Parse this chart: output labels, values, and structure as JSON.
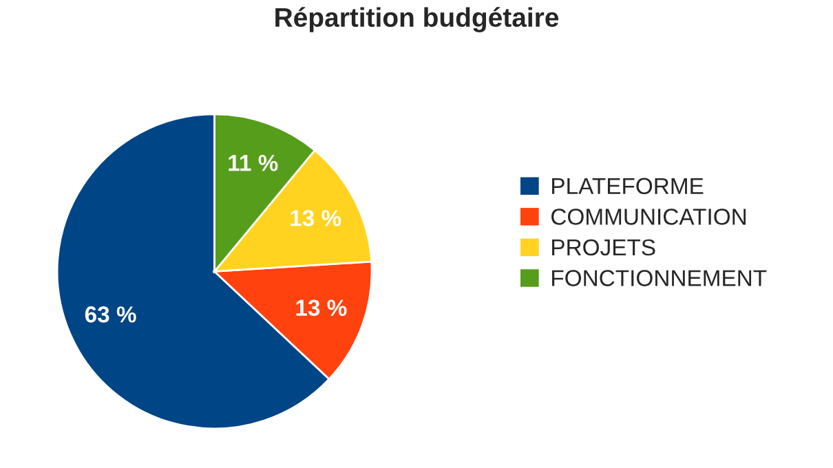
{
  "chart_data": {
    "type": "pie",
    "title": "Répartition budgétaire",
    "categories": [
      "PLATEFORME",
      "COMMUNICATION",
      "PROJETS",
      "FONCTIONNEMENT"
    ],
    "values": [
      63,
      13,
      13,
      11
    ],
    "colors": [
      "#004586",
      "#ff420e",
      "#ffd320",
      "#579d1c"
    ],
    "value_labels": [
      "63 %",
      "13 %",
      "13 %",
      "11 %"
    ],
    "legend": "right"
  }
}
